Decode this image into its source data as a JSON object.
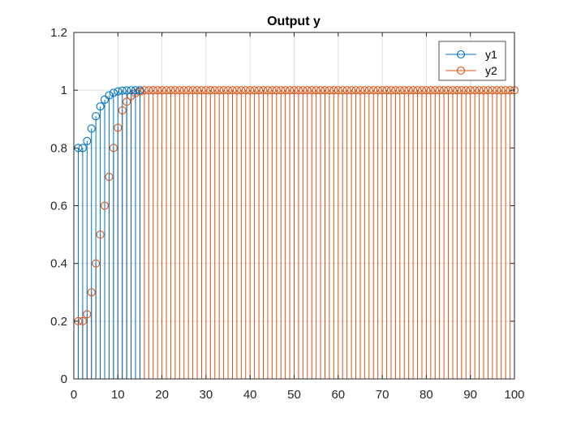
{
  "chart_data": {
    "type": "stem",
    "title": "Output y",
    "xlabel": "",
    "ylabel": "",
    "xlim": [
      0,
      100
    ],
    "ylim": [
      0,
      1.2
    ],
    "xticks": [
      0,
      10,
      20,
      30,
      40,
      50,
      60,
      70,
      80,
      90,
      100
    ],
    "yticks": [
      0,
      0.2,
      0.4,
      0.6,
      0.8,
      1,
      1.2
    ],
    "xtick_labels": [
      "0",
      "10",
      "20",
      "30",
      "40",
      "50",
      "60",
      "70",
      "80",
      "90",
      "100"
    ],
    "ytick_labels": [
      "0",
      "0.2",
      "0.4",
      "0.6",
      "0.8",
      "1",
      "1.2"
    ],
    "grid": true,
    "legend_position": "top-right",
    "series": [
      {
        "name": "y1",
        "color": "#0072BD",
        "x": [
          1,
          2,
          3,
          4,
          5,
          6,
          7,
          8,
          9,
          10,
          11,
          12,
          13,
          14,
          15
        ],
        "values": [
          0.8,
          0.8,
          0.824,
          0.8672,
          0.9101,
          0.9437,
          0.9672,
          0.9822,
          0.991,
          0.9958,
          0.9982,
          0.9993,
          0.9998,
          1.0,
          1.0
        ]
      },
      {
        "name": "y2",
        "color": "#D95319",
        "x": [
          1,
          2,
          3,
          4,
          5,
          6,
          7,
          8,
          9,
          10,
          11,
          12,
          13,
          14,
          15,
          16,
          17,
          18,
          19,
          20,
          21,
          22,
          23,
          24,
          25,
          26,
          27,
          28,
          29,
          30,
          31,
          32,
          33,
          34,
          35,
          36,
          37,
          38,
          39,
          40,
          41,
          42,
          43,
          44,
          45,
          46,
          47,
          48,
          49,
          50,
          51,
          52,
          53,
          54,
          55,
          56,
          57,
          58,
          59,
          60,
          61,
          62,
          63,
          64,
          65,
          66,
          67,
          68,
          69,
          70,
          71,
          72,
          73,
          74,
          75,
          76,
          77,
          78,
          79,
          80,
          81,
          82,
          83,
          84,
          85,
          86,
          87,
          88,
          89,
          90,
          91,
          92,
          93,
          94,
          95,
          96,
          97,
          98,
          99,
          100
        ],
        "values": [
          0.2,
          0.2,
          0.224,
          0.3,
          0.4,
          0.5,
          0.6,
          0.7,
          0.8,
          0.87,
          0.93,
          0.96,
          0.98,
          0.99,
          0.995,
          1,
          1,
          1,
          1,
          1,
          1,
          1,
          1,
          1,
          1,
          1,
          1,
          1,
          1,
          1,
          1,
          1,
          1,
          1,
          1,
          1,
          1,
          1,
          1,
          1,
          1,
          1,
          1,
          1,
          1,
          1,
          1,
          1,
          1,
          1,
          1,
          1,
          1,
          1,
          1,
          1,
          1,
          1,
          1,
          1,
          1,
          1,
          1,
          1,
          1,
          1,
          1,
          1,
          1,
          1,
          1,
          1,
          1,
          1,
          1,
          1,
          1,
          1,
          1,
          1,
          1,
          1,
          1,
          1,
          1,
          1,
          1,
          1,
          1,
          1,
          1,
          1,
          1,
          1,
          1,
          1,
          1,
          1,
          1,
          1
        ]
      }
    ]
  }
}
